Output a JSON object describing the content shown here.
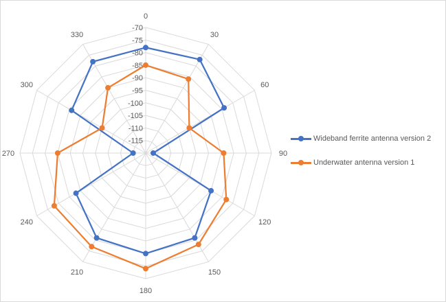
{
  "chart_data": {
    "type": "radar",
    "title": "",
    "categories": [
      "0",
      "30",
      "60",
      "90",
      "120",
      "150",
      "180",
      "210",
      "240",
      "270",
      "300",
      "330"
    ],
    "radial_ticks": [
      "-70",
      "-75",
      "-80",
      "-85",
      "-90",
      "-95",
      "-100",
      "-105",
      "-110",
      "-115"
    ],
    "rlim": [
      -120,
      -70
    ],
    "grid": true,
    "legend_position": "right",
    "series": [
      {
        "name": "Wideband ferrite antenna version 2",
        "color": "#4472c4",
        "values": [
          -78,
          -77,
          -84,
          -117,
          -90,
          -81,
          -80,
          -81,
          -88,
          -115,
          -86,
          -78
        ]
      },
      {
        "name": "Underwater antenna version 1",
        "color": "#ed7d31",
        "values": [
          -85,
          -86,
          -100,
          -89,
          -83,
          -78,
          -74,
          -77,
          -78,
          -85,
          -100,
          -90
        ]
      }
    ]
  }
}
